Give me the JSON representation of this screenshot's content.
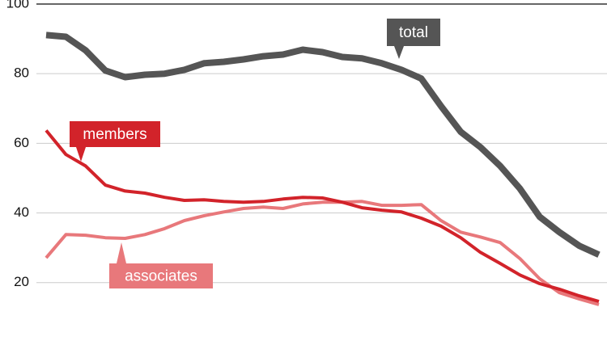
{
  "chart_data": {
    "type": "line",
    "categories": [
      null,
      null,
      null,
      null,
      null,
      null,
      null,
      null,
      null,
      null,
      null,
      null,
      null,
      null,
      null,
      null,
      null,
      null,
      null,
      null,
      null,
      null,
      null,
      null,
      null,
      null,
      null,
      null,
      null
    ],
    "series": [
      {
        "name": "associates",
        "color": "#e8787b",
        "values": [
          27.1,
          33.8,
          33.6,
          32.9,
          32.7,
          33.8,
          35.5,
          37.8,
          39.2,
          40.3,
          41.3,
          41.7,
          41.3,
          42.6,
          43.1,
          43.1,
          43.3,
          42.2,
          42.2,
          42.4,
          37.8,
          34.5,
          33.1,
          31.5,
          26.9,
          21.1,
          17.1,
          15.3,
          13.7
        ]
      },
      {
        "name": "members",
        "color": "#d2232a",
        "values": [
          63.7,
          56.8,
          53.5,
          48.0,
          46.3,
          45.7,
          44.5,
          43.6,
          43.8,
          43.3,
          43.1,
          43.3,
          44.0,
          44.5,
          44.3,
          43.1,
          41.5,
          40.8,
          40.3,
          38.5,
          36.2,
          32.9,
          28.7,
          25.5,
          22.2,
          19.7,
          18.1,
          16.2,
          14.6
        ]
      },
      {
        "name": "total",
        "color": "#555555",
        "values": [
          91.1,
          90.6,
          86.7,
          80.9,
          79.0,
          79.7,
          80.0,
          81.1,
          83.0,
          83.4,
          84.1,
          85.0,
          85.5,
          86.9,
          86.2,
          84.8,
          84.4,
          83.0,
          81.1,
          78.6,
          70.7,
          63.3,
          58.9,
          53.5,
          47.0,
          38.9,
          34.5,
          30.6,
          28.0
        ]
      }
    ],
    "ylim": [
      3,
      100
    ],
    "yticks": [
      20,
      40,
      60,
      80,
      100
    ],
    "grid": true
  }
}
